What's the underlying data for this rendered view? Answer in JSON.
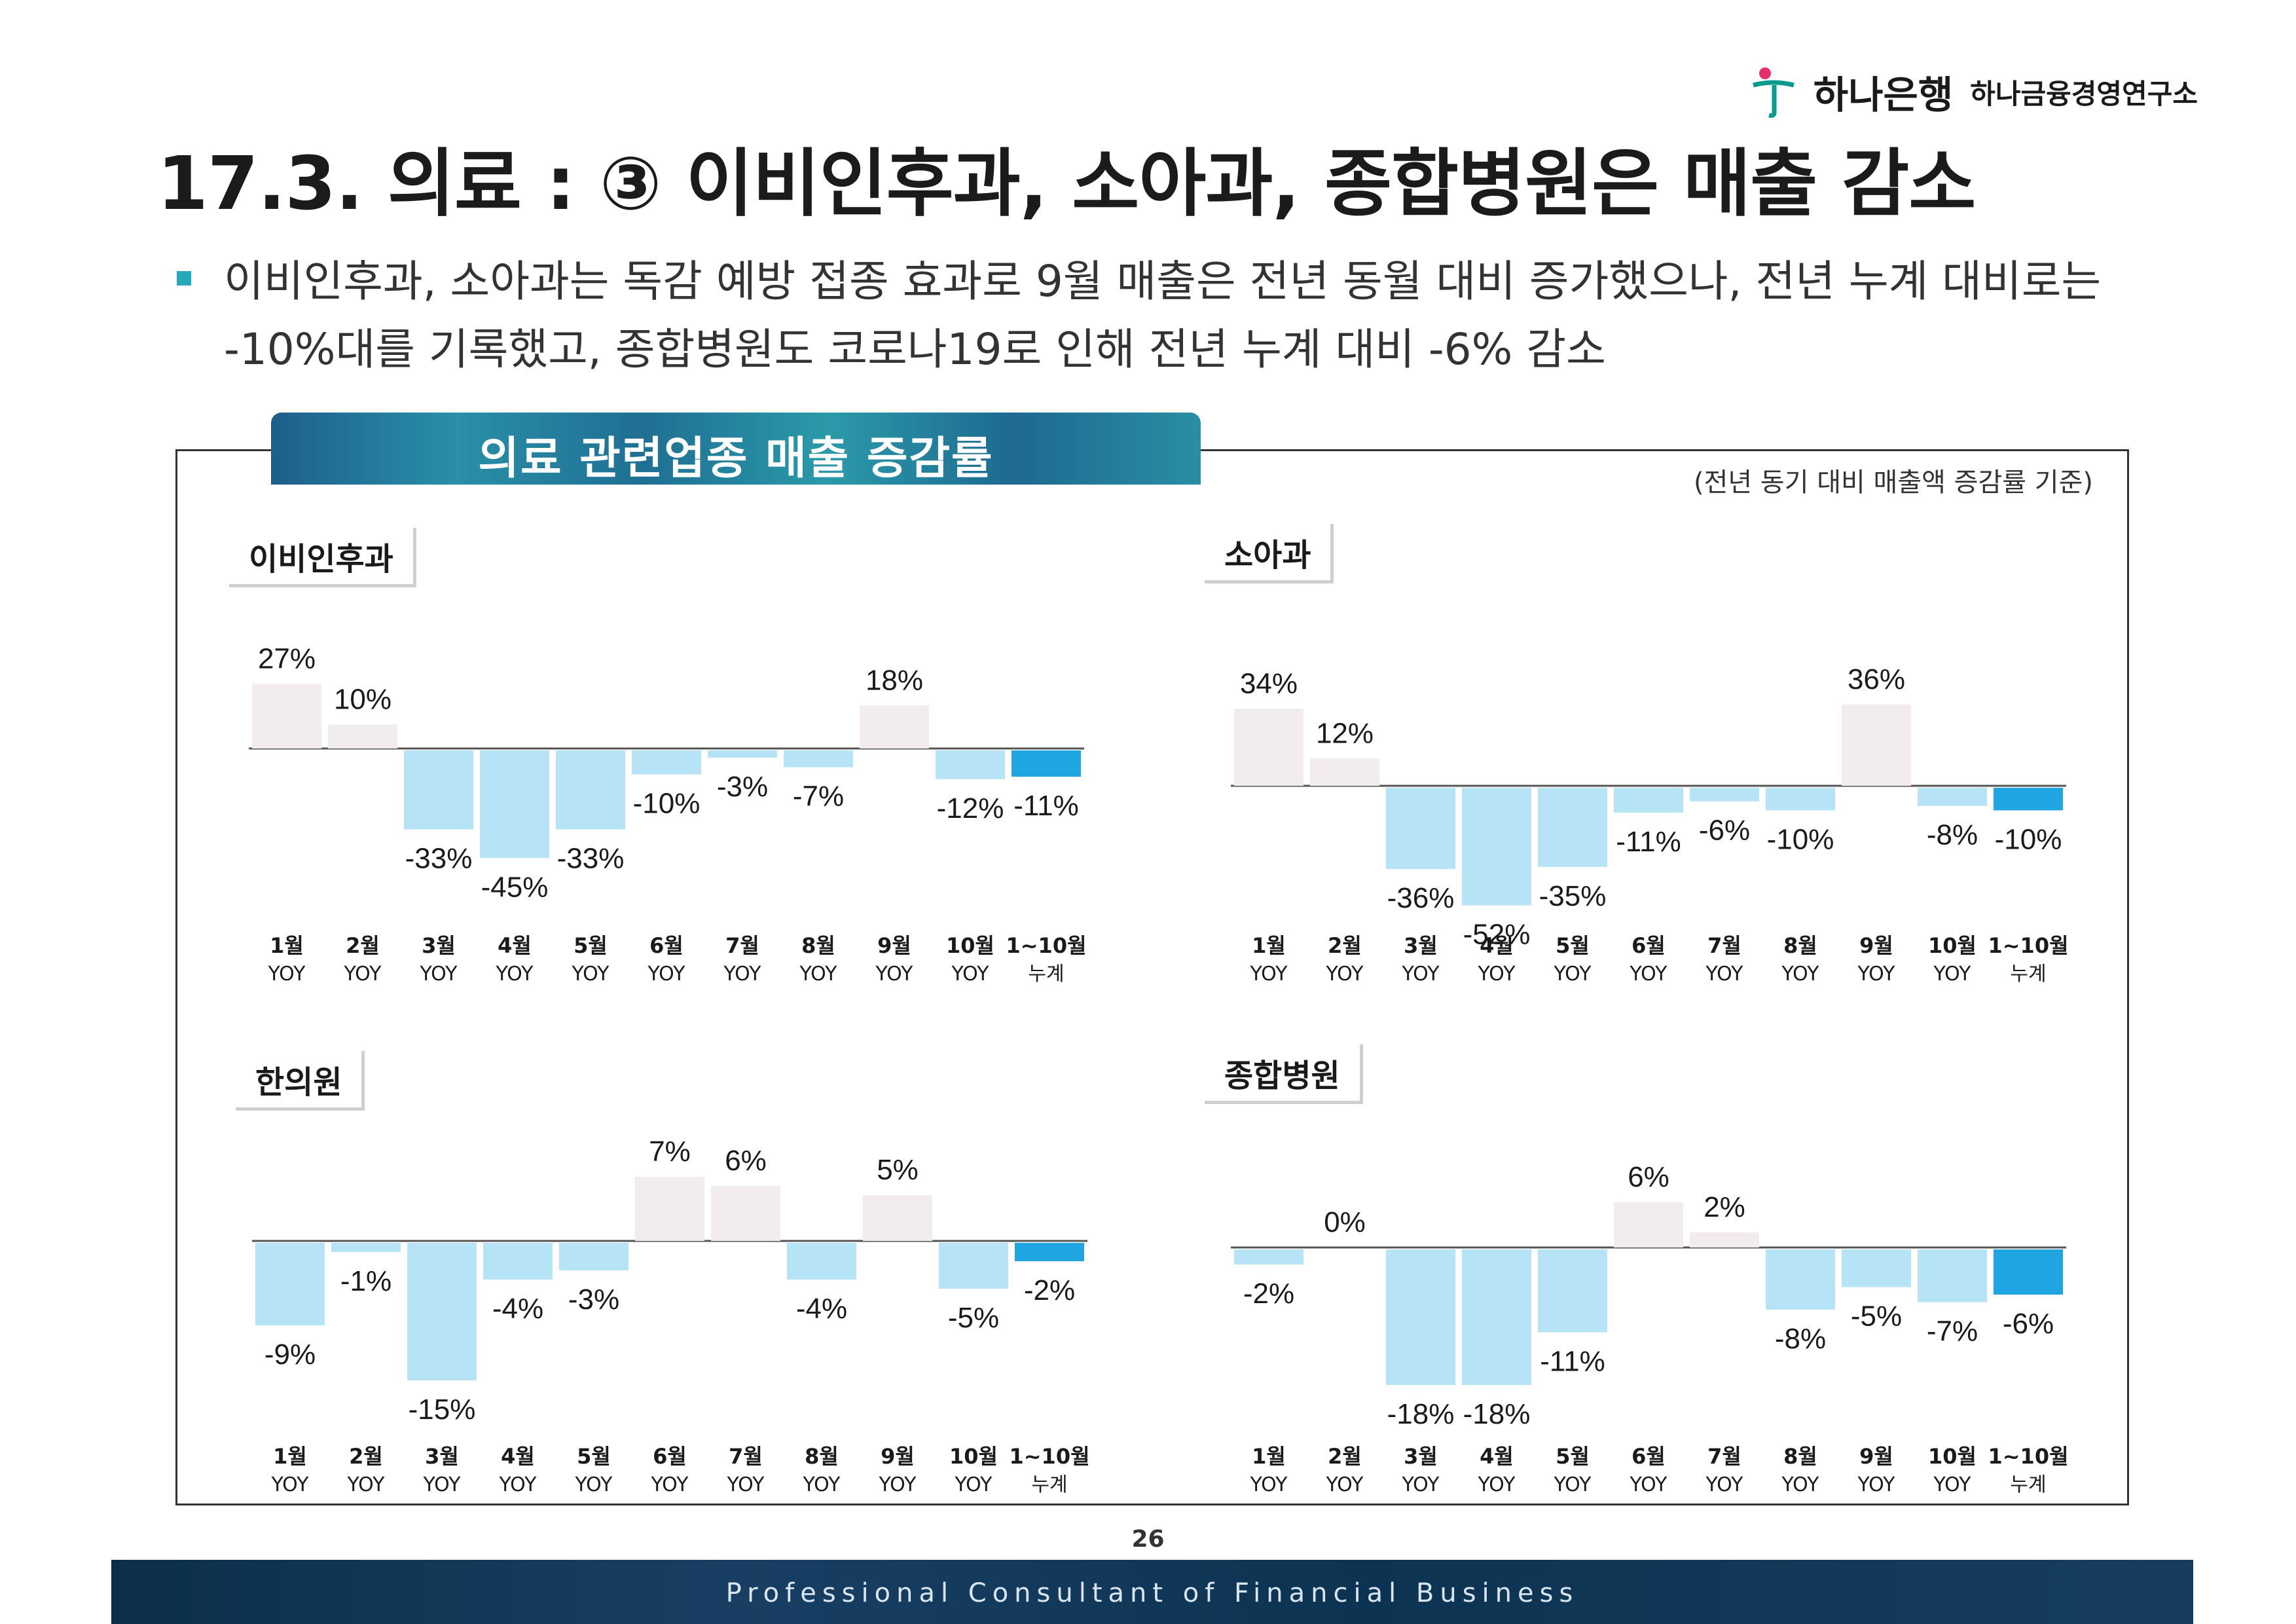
{
  "header": {
    "bank_name": "하나은행",
    "institute_name": "하나금융경영연구소",
    "title": "17.3. 의료 : ③ 이비인후과, 소아과, 종합병원은 매출 감소"
  },
  "summary": {
    "bullet": "이비인후과, 소아과는 독감 예방 접종 효과로 9월 매출은 전년 동월 대비 증가했으나, 전년 누계 대비로는 -10%대를 기록했고, 종합병원도 코로나19로 인해 전년 누계 대비 -6% 감소"
  },
  "section": {
    "banner": "의료 관련업종 매출 증감률",
    "basis_note": "(전년 동기 대비 매출액 증감률 기준)"
  },
  "colors": {
    "negative": "#b7e3f6",
    "positive": "#f3ecee",
    "cumulative": "#1fa6e2",
    "banner": "#2a8fa8"
  },
  "chart_data": [
    {
      "type": "bar",
      "title": "이비인후과",
      "categories": [
        "1월 YOY",
        "2월 YOY",
        "3월 YOY",
        "4월 YOY",
        "5월 YOY",
        "6월 YOY",
        "7월 YOY",
        "8월 YOY",
        "9월 YOY",
        "10월 YOY",
        "1~10월 누계"
      ],
      "values": [
        27,
        10,
        -33,
        -45,
        -33,
        -10,
        -3,
        -7,
        18,
        -12,
        -11
      ],
      "labels": [
        "27%",
        "10%",
        "-33%",
        "-45%",
        "-33%",
        "-10%",
        "-3%",
        "-7%",
        "18%",
        "-12%",
        "-11%"
      ]
    },
    {
      "type": "bar",
      "title": "소아과",
      "categories": [
        "1월 YOY",
        "2월 YOY",
        "3월 YOY",
        "4월 YOY",
        "5월 YOY",
        "6월 YOY",
        "7월 YOY",
        "8월 YOY",
        "9월 YOY",
        "10월 YOY",
        "1~10월 누계"
      ],
      "values": [
        34,
        12,
        -36,
        -52,
        -35,
        -11,
        -6,
        -10,
        36,
        -8,
        -10
      ],
      "labels": [
        "34%",
        "12%",
        "-36%",
        "-52%",
        "-35%",
        "-11%",
        "-6%",
        "-10%",
        "36%",
        "-8%",
        "-10%"
      ]
    },
    {
      "type": "bar",
      "title": "한의원",
      "categories": [
        "1월 YOY",
        "2월 YOY",
        "3월 YOY",
        "4월 YOY",
        "5월 YOY",
        "6월 YOY",
        "7월 YOY",
        "8월 YOY",
        "9월 YOY",
        "10월 YOY",
        "1~10월 누계"
      ],
      "values": [
        -9,
        -1,
        -15,
        -4,
        -3,
        7,
        6,
        -4,
        5,
        -5,
        -2
      ],
      "labels": [
        "-9%",
        "-1%",
        "-15%",
        "-4%",
        "-3%",
        "7%",
        "6%",
        "-4%",
        "5%",
        "-5%",
        "-2%"
      ]
    },
    {
      "type": "bar",
      "title": "종합병원",
      "categories": [
        "1월 YOY",
        "2월 YOY",
        "3월 YOY",
        "4월 YOY",
        "5월 YOY",
        "6월 YOY",
        "7월 YOY",
        "8월 YOY",
        "9월 YOY",
        "10월 YOY",
        "1~10월 누계"
      ],
      "values": [
        -2,
        0,
        -18,
        -18,
        -11,
        6,
        2,
        -8,
        -5,
        -7,
        -6
      ],
      "labels": [
        "-2%",
        "0%",
        "-18%",
        "-18%",
        "-11%",
        "6%",
        "2%",
        "-8%",
        "-5%",
        "-7%",
        "-6%"
      ]
    }
  ],
  "footer": {
    "page_number": "26",
    "tagline": "Professional Consultant of Financial Business"
  }
}
